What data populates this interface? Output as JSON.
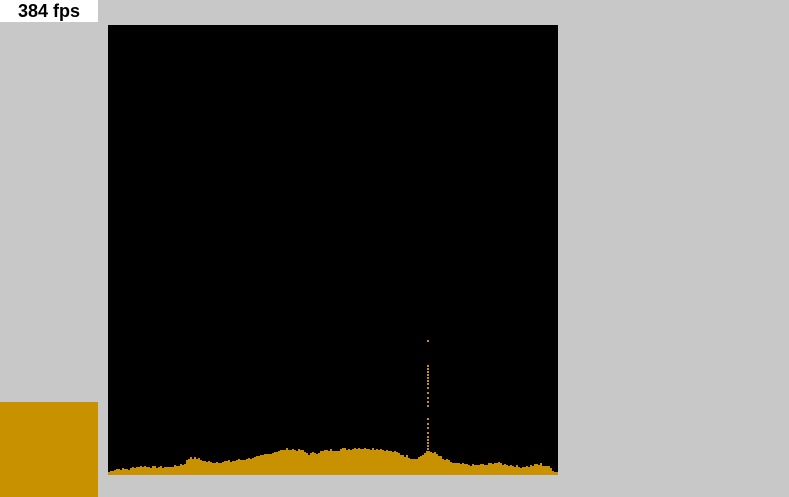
{
  "fps": {
    "label": "384 fps"
  },
  "palette": {
    "selected_color": "#c79100",
    "sand_color": "#c79100",
    "canvas_background": "#000000",
    "page_background": "#c8c8c8"
  },
  "simulation": {
    "material": "sand"
  }
}
